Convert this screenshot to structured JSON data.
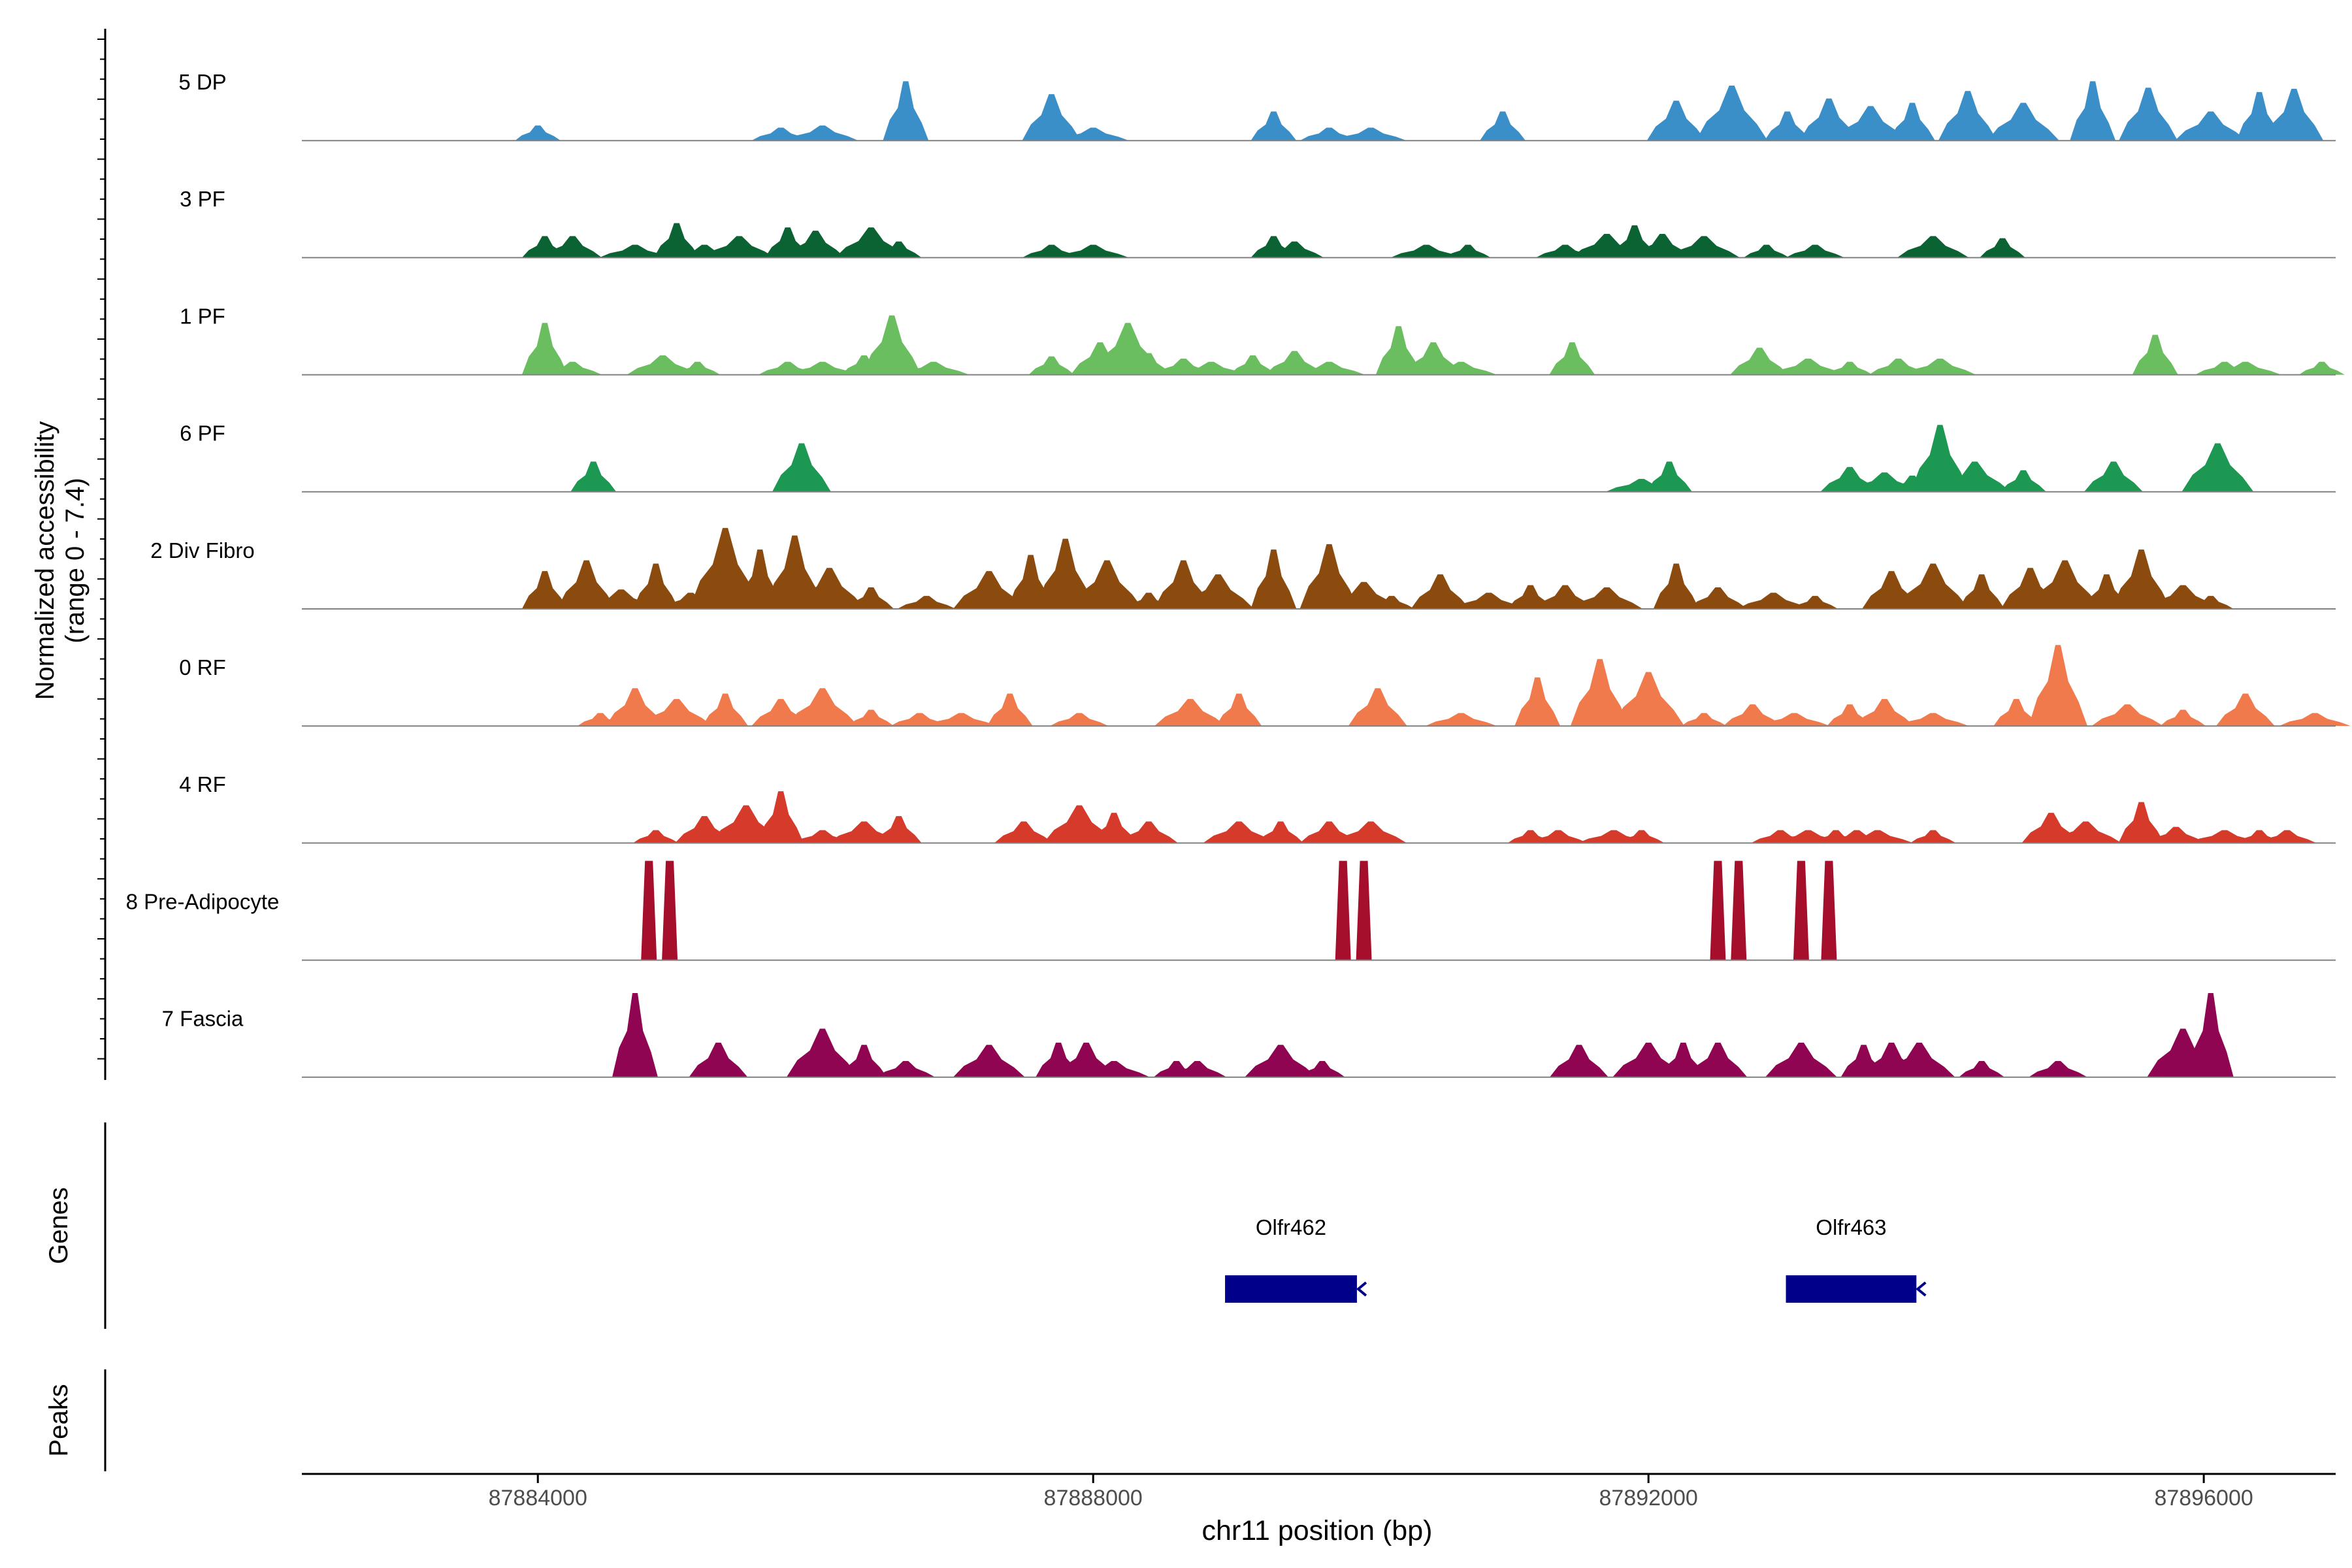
{
  "chart_data": {
    "type": "area",
    "subtype": "coverage-track",
    "xlabel": "chr11 position (bp)",
    "ylabel_line1": "Normalized accessibility",
    "ylabel_line2": "(range 0 - 7.4)",
    "xlim": [
      87882300,
      87896950
    ],
    "ylim": [
      0,
      7.4
    ],
    "x_ticks": [
      87884000,
      87888000,
      87892000,
      87896000
    ],
    "x_tick_labels": [
      "87884000",
      "87888000",
      "87892000",
      "87896000"
    ],
    "series": [
      {
        "name": "5 DP",
        "color": "#3B8FC8",
        "peaks": [
          [
            87884000,
            0.14
          ],
          [
            87885750,
            0.12
          ],
          [
            87886050,
            0.14
          ],
          [
            87886650,
            0.55
          ],
          [
            87887700,
            0.43
          ],
          [
            87888000,
            0.12
          ],
          [
            87889300,
            0.27
          ],
          [
            87889700,
            0.12
          ],
          [
            87890000,
            0.12
          ],
          [
            87890950,
            0.27
          ],
          [
            87892200,
            0.37
          ],
          [
            87892600,
            0.51
          ],
          [
            87893000,
            0.27
          ],
          [
            87893300,
            0.39
          ],
          [
            87893600,
            0.32
          ],
          [
            87893900,
            0.35
          ],
          [
            87894300,
            0.46
          ],
          [
            87894700,
            0.35
          ],
          [
            87895200,
            0.55
          ],
          [
            87895600,
            0.49
          ],
          [
            87896050,
            0.27
          ],
          [
            87896400,
            0.45
          ],
          [
            87896650,
            0.48
          ]
        ]
      },
      {
        "name": "3 PF",
        "color": "#0B6233",
        "peaks": [
          [
            87884050,
            0.2
          ],
          [
            87884250,
            0.2
          ],
          [
            87884700,
            0.12
          ],
          [
            87885000,
            0.32
          ],
          [
            87885200,
            0.12
          ],
          [
            87885450,
            0.2
          ],
          [
            87885800,
            0.28
          ],
          [
            87886000,
            0.25
          ],
          [
            87886400,
            0.28
          ],
          [
            87886600,
            0.15
          ],
          [
            87887700,
            0.12
          ],
          [
            87888000,
            0.12
          ],
          [
            87889300,
            0.2
          ],
          [
            87889450,
            0.15
          ],
          [
            87890400,
            0.12
          ],
          [
            87890700,
            0.12
          ],
          [
            87891400,
            0.12
          ],
          [
            87891700,
            0.22
          ],
          [
            87891900,
            0.3
          ],
          [
            87892100,
            0.22
          ],
          [
            87892400,
            0.2
          ],
          [
            87892850,
            0.12
          ],
          [
            87893200,
            0.12
          ],
          [
            87894050,
            0.2
          ],
          [
            87894550,
            0.18
          ]
        ]
      },
      {
        "name": "1 PF",
        "color": "#6ABE5F",
        "peaks": [
          [
            87884050,
            0.48
          ],
          [
            87884250,
            0.12
          ],
          [
            87884900,
            0.18
          ],
          [
            87885150,
            0.12
          ],
          [
            87885800,
            0.12
          ],
          [
            87886050,
            0.12
          ],
          [
            87886350,
            0.18
          ],
          [
            87886550,
            0.55
          ],
          [
            87886850,
            0.12
          ],
          [
            87887700,
            0.17
          ],
          [
            87888050,
            0.3
          ],
          [
            87888250,
            0.48
          ],
          [
            87888400,
            0.2
          ],
          [
            87888650,
            0.15
          ],
          [
            87888850,
            0.12
          ],
          [
            87889150,
            0.18
          ],
          [
            87889450,
            0.22
          ],
          [
            87889700,
            0.12
          ],
          [
            87890200,
            0.45
          ],
          [
            87890450,
            0.3
          ],
          [
            87890650,
            0.12
          ],
          [
            87891450,
            0.3
          ],
          [
            87892800,
            0.25
          ],
          [
            87893150,
            0.15
          ],
          [
            87893450,
            0.12
          ],
          [
            87893800,
            0.15
          ],
          [
            87894100,
            0.15
          ],
          [
            87895650,
            0.37
          ],
          [
            87896150,
            0.12
          ],
          [
            87896300,
            0.12
          ],
          [
            87896850,
            0.12
          ]
        ]
      },
      {
        "name": "6 PF",
        "color": "#1D9853",
        "peaks": [
          [
            87884400,
            0.28
          ],
          [
            87885900,
            0.45
          ],
          [
            87891950,
            0.12
          ],
          [
            87892150,
            0.28
          ],
          [
            87893450,
            0.23
          ],
          [
            87893700,
            0.18
          ],
          [
            87893900,
            0.15
          ],
          [
            87894100,
            0.62
          ],
          [
            87894350,
            0.28
          ],
          [
            87894700,
            0.2
          ],
          [
            87895350,
            0.28
          ],
          [
            87896100,
            0.45
          ]
        ]
      },
      {
        "name": "2 Div Fibro",
        "color": "#8B4A0E",
        "peaks": [
          [
            87884050,
            0.35
          ],
          [
            87884350,
            0.45
          ],
          [
            87884600,
            0.18
          ],
          [
            87884850,
            0.42
          ],
          [
            87885100,
            0.15
          ],
          [
            87885350,
            0.75
          ],
          [
            87885600,
            0.55
          ],
          [
            87885850,
            0.68
          ],
          [
            87886100,
            0.38
          ],
          [
            87886400,
            0.2
          ],
          [
            87886800,
            0.12
          ],
          [
            87887250,
            0.35
          ],
          [
            87887550,
            0.5
          ],
          [
            87887800,
            0.65
          ],
          [
            87888100,
            0.45
          ],
          [
            87888400,
            0.15
          ],
          [
            87888650,
            0.45
          ],
          [
            87888900,
            0.32
          ],
          [
            87889300,
            0.55
          ],
          [
            87889700,
            0.6
          ],
          [
            87889950,
            0.25
          ],
          [
            87890150,
            0.12
          ],
          [
            87890500,
            0.32
          ],
          [
            87890850,
            0.15
          ],
          [
            87891150,
            0.22
          ],
          [
            87891400,
            0.22
          ],
          [
            87891700,
            0.2
          ],
          [
            87892200,
            0.42
          ],
          [
            87892500,
            0.2
          ],
          [
            87892900,
            0.15
          ],
          [
            87893200,
            0.12
          ],
          [
            87893750,
            0.35
          ],
          [
            87894050,
            0.42
          ],
          [
            87894400,
            0.32
          ],
          [
            87894750,
            0.38
          ],
          [
            87895000,
            0.45
          ],
          [
            87895300,
            0.32
          ],
          [
            87895550,
            0.55
          ],
          [
            87895850,
            0.22
          ],
          [
            87896050,
            0.12
          ]
        ]
      },
      {
        "name": "0 RF",
        "color": "#F17A4D",
        "peaks": [
          [
            87884450,
            0.12
          ],
          [
            87884700,
            0.35
          ],
          [
            87885000,
            0.25
          ],
          [
            87885350,
            0.3
          ],
          [
            87885750,
            0.25
          ],
          [
            87886050,
            0.35
          ],
          [
            87886400,
            0.15
          ],
          [
            87886750,
            0.12
          ],
          [
            87887050,
            0.12
          ],
          [
            87887400,
            0.3
          ],
          [
            87887900,
            0.12
          ],
          [
            87888700,
            0.25
          ],
          [
            87889050,
            0.3
          ],
          [
            87890050,
            0.35
          ],
          [
            87890650,
            0.12
          ],
          [
            87891200,
            0.45
          ],
          [
            87891650,
            0.62
          ],
          [
            87892000,
            0.5
          ],
          [
            87892400,
            0.12
          ],
          [
            87892750,
            0.2
          ],
          [
            87893050,
            0.12
          ],
          [
            87893450,
            0.2
          ],
          [
            87893700,
            0.25
          ],
          [
            87894050,
            0.12
          ],
          [
            87894650,
            0.25
          ],
          [
            87894950,
            0.75
          ],
          [
            87895450,
            0.2
          ],
          [
            87895850,
            0.15
          ],
          [
            87896300,
            0.3
          ],
          [
            87896800,
            0.12
          ]
        ]
      },
      {
        "name": "4 RF",
        "color": "#D63A2A",
        "peaks": [
          [
            87884850,
            0.12
          ],
          [
            87885200,
            0.25
          ],
          [
            87885500,
            0.35
          ],
          [
            87885750,
            0.48
          ],
          [
            87886050,
            0.12
          ],
          [
            87886350,
            0.2
          ],
          [
            87886600,
            0.25
          ],
          [
            87887500,
            0.2
          ],
          [
            87887900,
            0.35
          ],
          [
            87888150,
            0.28
          ],
          [
            87888400,
            0.2
          ],
          [
            87889050,
            0.2
          ],
          [
            87889350,
            0.2
          ],
          [
            87889700,
            0.2
          ],
          [
            87890000,
            0.2
          ],
          [
            87891150,
            0.12
          ],
          [
            87891350,
            0.12
          ],
          [
            87891750,
            0.12
          ],
          [
            87891950,
            0.12
          ],
          [
            87892950,
            0.12
          ],
          [
            87893150,
            0.12
          ],
          [
            87893350,
            0.12
          ],
          [
            87893500,
            0.12
          ],
          [
            87893650,
            0.12
          ],
          [
            87894050,
            0.12
          ],
          [
            87894900,
            0.28
          ],
          [
            87895150,
            0.2
          ],
          [
            87895550,
            0.38
          ],
          [
            87895800,
            0.15
          ],
          [
            87896150,
            0.12
          ],
          [
            87896400,
            0.12
          ],
          [
            87896600,
            0.12
          ]
        ]
      },
      {
        "name": "8 Pre-Adipocyte",
        "color": "#A50F2C",
        "peaks": [
          [
            87884800,
            0.92
          ],
          [
            87884950,
            0.92
          ],
          [
            87889800,
            0.92
          ],
          [
            87889950,
            0.92
          ],
          [
            87892500,
            0.92
          ],
          [
            87892650,
            0.92
          ],
          [
            87893100,
            0.92
          ],
          [
            87893300,
            0.92
          ]
        ]
      },
      {
        "name": "7 Fascia",
        "color": "#8F0552",
        "peaks": [
          [
            87884700,
            0.78
          ],
          [
            87885300,
            0.32
          ],
          [
            87886050,
            0.45
          ],
          [
            87886350,
            0.3
          ],
          [
            87886650,
            0.15
          ],
          [
            87887250,
            0.3
          ],
          [
            87887750,
            0.32
          ],
          [
            87887950,
            0.32
          ],
          [
            87888150,
            0.15
          ],
          [
            87888600,
            0.15
          ],
          [
            87888750,
            0.15
          ],
          [
            87889350,
            0.3
          ],
          [
            87889650,
            0.15
          ],
          [
            87891500,
            0.3
          ],
          [
            87892000,
            0.32
          ],
          [
            87892250,
            0.32
          ],
          [
            87892500,
            0.32
          ],
          [
            87893100,
            0.32
          ],
          [
            87893550,
            0.3
          ],
          [
            87893750,
            0.32
          ],
          [
            87893950,
            0.32
          ],
          [
            87894400,
            0.15
          ],
          [
            87894950,
            0.15
          ],
          [
            87895850,
            0.45
          ],
          [
            87896050,
            0.78
          ]
        ]
      }
    ],
    "genes": [
      {
        "name": "Olfr462",
        "start": 87888950,
        "end": 87889900,
        "strand": "-"
      },
      {
        "name": "Olfr463",
        "start": 87892990,
        "end": 87893930,
        "strand": "-"
      }
    ],
    "gene_color": "#00008B",
    "panels": [
      "Genes",
      "Peaks"
    ]
  }
}
